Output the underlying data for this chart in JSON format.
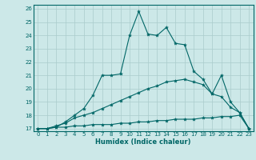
{
  "xlabel": "Humidex (Indice chaleur)",
  "bg_color": "#cce8e8",
  "grid_color": "#aacccc",
  "line_color": "#006666",
  "xlim": [
    -0.5,
    23.5
  ],
  "ylim": [
    16.8,
    26.3
  ],
  "yticks": [
    17,
    18,
    19,
    20,
    21,
    22,
    23,
    24,
    25,
    26
  ],
  "xticks": [
    0,
    1,
    2,
    3,
    4,
    5,
    6,
    7,
    8,
    9,
    10,
    11,
    12,
    13,
    14,
    15,
    16,
    17,
    18,
    19,
    20,
    21,
    22,
    23
  ],
  "lines": [
    {
      "x": [
        0,
        1,
        2,
        3,
        4,
        5,
        6,
        7,
        8,
        9,
        10,
        11,
        12,
        13,
        14,
        15,
        16,
        17,
        18,
        19,
        20,
        21,
        22,
        23
      ],
      "y": [
        17,
        17,
        17.1,
        17.1,
        17.2,
        17.2,
        17.3,
        17.3,
        17.3,
        17.4,
        17.4,
        17.5,
        17.5,
        17.6,
        17.6,
        17.7,
        17.7,
        17.7,
        17.8,
        17.8,
        17.9,
        17.9,
        18.0,
        17.0
      ]
    },
    {
      "x": [
        0,
        1,
        2,
        3,
        4,
        5,
        6,
        7,
        8,
        9,
        10,
        11,
        12,
        13,
        14,
        15,
        16,
        17,
        18,
        19,
        20,
        21,
        22,
        23
      ],
      "y": [
        17,
        17,
        17.2,
        17.4,
        17.8,
        18.0,
        18.2,
        18.5,
        18.8,
        19.1,
        19.4,
        19.7,
        20.0,
        20.2,
        20.5,
        20.6,
        20.7,
        20.5,
        20.3,
        19.6,
        19.4,
        18.6,
        18.2,
        17.0
      ]
    },
    {
      "x": [
        0,
        1,
        2,
        3,
        4,
        5,
        6,
        7,
        8,
        9,
        10,
        11,
        12,
        13,
        14,
        15,
        16,
        17,
        18,
        19,
        20,
        21,
        22,
        23
      ],
      "y": [
        17,
        17,
        17.1,
        17.5,
        18.0,
        18.5,
        19.5,
        21.0,
        21.0,
        21.1,
        24.0,
        25.8,
        24.1,
        24.0,
        24.6,
        23.4,
        23.3,
        21.3,
        20.7,
        19.6,
        21.0,
        19.0,
        18.2,
        17.0
      ]
    }
  ]
}
